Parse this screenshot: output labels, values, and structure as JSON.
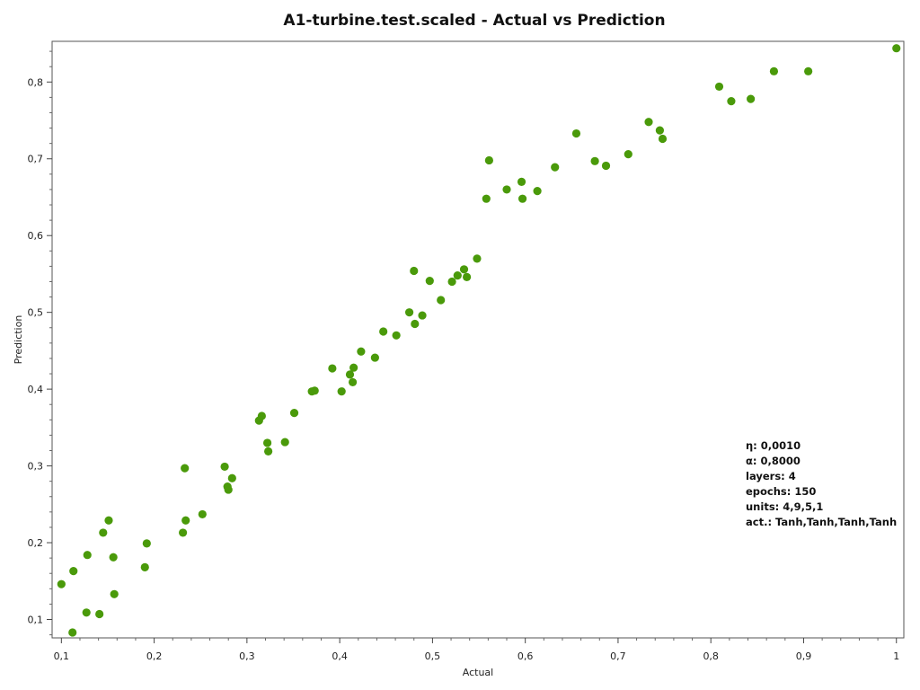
{
  "chart_data": {
    "type": "scatter",
    "title": "A1-turbine.test.scaled - Actual vs Prediction",
    "xlabel": "Actual",
    "ylabel": "Prediction",
    "xlim": [
      0.09,
      1.008
    ],
    "ylim": [
      0.076,
      0.853
    ],
    "xticks": [
      0.1,
      0.2,
      0.3,
      0.4,
      0.5,
      0.6,
      0.7,
      0.8,
      0.9,
      1.0
    ],
    "xtick_labels": [
      "0,1",
      "0,2",
      "0,3",
      "0,4",
      "0,5",
      "0,6",
      "0,7",
      "0,8",
      "0,9",
      "1"
    ],
    "yticks": [
      0.1,
      0.2,
      0.3,
      0.4,
      0.5,
      0.6,
      0.7,
      0.8
    ],
    "ytick_labels": [
      "0,1",
      "0,2",
      "0,3",
      "0,4",
      "0,5",
      "0,6",
      "0,7",
      "0,8"
    ],
    "grid": false,
    "marker_color": "#4a9a0a",
    "points": [
      [
        0.1,
        0.146
      ],
      [
        0.112,
        0.083
      ],
      [
        0.113,
        0.163
      ],
      [
        0.127,
        0.109
      ],
      [
        0.128,
        0.184
      ],
      [
        0.141,
        0.107
      ],
      [
        0.145,
        0.213
      ],
      [
        0.151,
        0.229
      ],
      [
        0.156,
        0.181
      ],
      [
        0.157,
        0.133
      ],
      [
        0.19,
        0.168
      ],
      [
        0.192,
        0.199
      ],
      [
        0.231,
        0.213
      ],
      [
        0.233,
        0.297
      ],
      [
        0.234,
        0.229
      ],
      [
        0.252,
        0.237
      ],
      [
        0.276,
        0.299
      ],
      [
        0.279,
        0.273
      ],
      [
        0.28,
        0.269
      ],
      [
        0.284,
        0.284
      ],
      [
        0.313,
        0.359
      ],
      [
        0.316,
        0.365
      ],
      [
        0.322,
        0.33
      ],
      [
        0.323,
        0.319
      ],
      [
        0.341,
        0.331
      ],
      [
        0.351,
        0.369
      ],
      [
        0.37,
        0.397
      ],
      [
        0.373,
        0.398
      ],
      [
        0.392,
        0.427
      ],
      [
        0.402,
        0.397
      ],
      [
        0.411,
        0.419
      ],
      [
        0.414,
        0.409
      ],
      [
        0.415,
        0.428
      ],
      [
        0.423,
        0.449
      ],
      [
        0.438,
        0.441
      ],
      [
        0.447,
        0.475
      ],
      [
        0.461,
        0.47
      ],
      [
        0.475,
        0.5
      ],
      [
        0.48,
        0.554
      ],
      [
        0.481,
        0.485
      ],
      [
        0.489,
        0.496
      ],
      [
        0.497,
        0.541
      ],
      [
        0.509,
        0.516
      ],
      [
        0.521,
        0.54
      ],
      [
        0.527,
        0.548
      ],
      [
        0.534,
        0.556
      ],
      [
        0.537,
        0.546
      ],
      [
        0.548,
        0.57
      ],
      [
        0.558,
        0.648
      ],
      [
        0.561,
        0.698
      ],
      [
        0.58,
        0.66
      ],
      [
        0.596,
        0.67
      ],
      [
        0.597,
        0.648
      ],
      [
        0.613,
        0.658
      ],
      [
        0.632,
        0.689
      ],
      [
        0.655,
        0.733
      ],
      [
        0.675,
        0.697
      ],
      [
        0.687,
        0.691
      ],
      [
        0.711,
        0.706
      ],
      [
        0.733,
        0.748
      ],
      [
        0.745,
        0.737
      ],
      [
        0.748,
        0.726
      ],
      [
        0.809,
        0.794
      ],
      [
        0.822,
        0.775
      ],
      [
        0.843,
        0.778
      ],
      [
        0.868,
        0.814
      ],
      [
        0.905,
        0.814
      ],
      [
        1.0,
        0.844
      ]
    ]
  },
  "info_lines": [
    "η:  0,0010",
    "α:  0,8000",
    "layers: 4",
    "epochs: 150",
    "units: 4,9,5,1",
    "act.: Tanh,Tanh,Tanh,Tanh"
  ]
}
